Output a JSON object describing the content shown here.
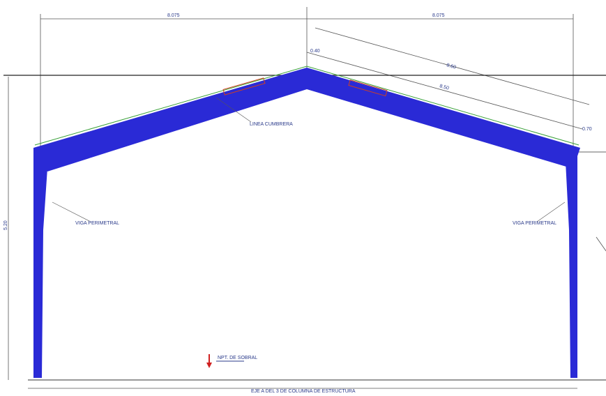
{
  "dimensions": {
    "top_left": "8.075",
    "top_right": "8.075",
    "slope_outer": "8.60",
    "slope_inner": "8.50",
    "ridge_offset": "0.40",
    "eave_offset": "0.70",
    "height": "5.20"
  },
  "labels": {
    "ridge": "LINEA CUMBRERA",
    "left_column": "VIGA PERIMETRAL",
    "right_column": "VIGA PERIMETRAL",
    "level": "NPT. DE SOBRAL",
    "base": "EJE A DEL 3 DE COLUMNA DE ESTRUCTURA"
  }
}
